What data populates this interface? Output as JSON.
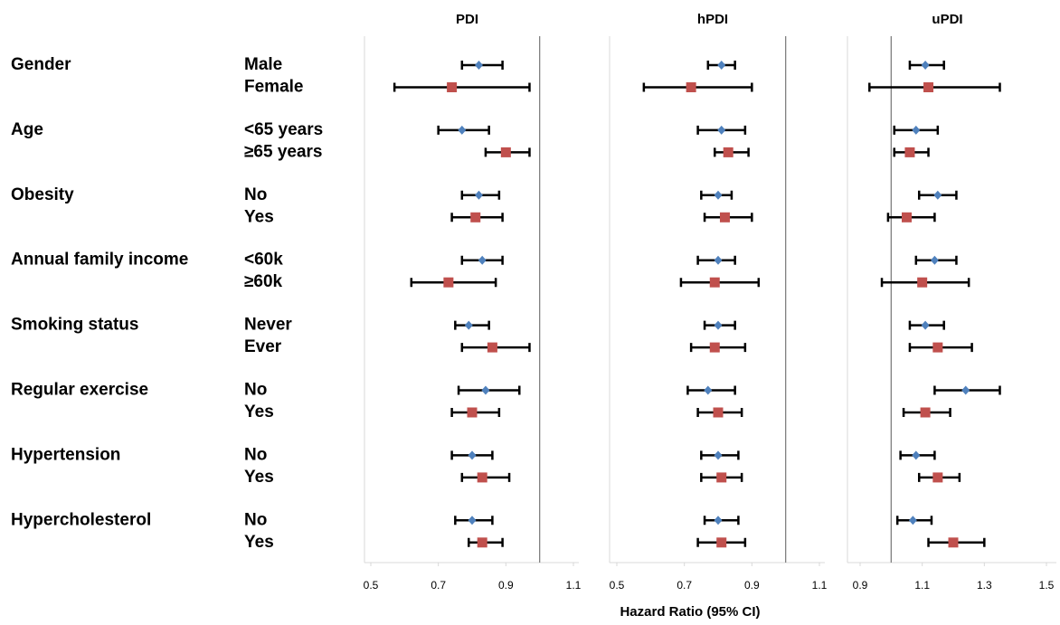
{
  "chart_data": {
    "type": "forest",
    "x_label": "Hazard Ratio (95% CI)",
    "reference": 1,
    "colors": [
      "#4f81bd",
      "#c0504d"
    ],
    "markers": [
      "diamond",
      "square"
    ],
    "groups": [
      {
        "name": "Gender",
        "levels": [
          "Male",
          "Female"
        ]
      },
      {
        "name": "Age",
        "levels": [
          "<65 years",
          "≥65 years"
        ]
      },
      {
        "name": "Obesity",
        "levels": [
          "No",
          "Yes"
        ]
      },
      {
        "name": "Annual family income",
        "levels": [
          "<60k",
          "≥60k"
        ]
      },
      {
        "name": "Smoking status",
        "levels": [
          "Never",
          "Ever"
        ]
      },
      {
        "name": "Regular exercise",
        "levels": [
          "No",
          "Yes"
        ]
      },
      {
        "name": "Hypertension",
        "levels": [
          "No",
          "Yes"
        ]
      },
      {
        "name": "Hypercholesterol",
        "levels": [
          "No",
          "Yes"
        ]
      }
    ],
    "panels": [
      {
        "title": "PDI",
        "xlim": [
          0.5,
          1.1
        ],
        "xticks": [
          0.5,
          0.7,
          0.9,
          1.1
        ],
        "values": [
          0.82,
          0.74,
          0.77,
          0.9,
          0.82,
          0.81,
          0.83,
          0.73,
          0.79,
          0.86,
          0.84,
          0.8,
          0.8,
          0.83,
          0.8,
          0.83
        ],
        "lower": [
          0.77,
          0.57,
          0.7,
          0.84,
          0.77,
          0.74,
          0.77,
          0.62,
          0.75,
          0.77,
          0.76,
          0.74,
          0.74,
          0.77,
          0.75,
          0.79
        ],
        "upper": [
          0.89,
          0.97,
          0.85,
          0.97,
          0.88,
          0.89,
          0.89,
          0.87,
          0.85,
          0.97,
          0.94,
          0.88,
          0.86,
          0.91,
          0.86,
          0.89
        ]
      },
      {
        "title": "hPDI",
        "xlim": [
          0.5,
          1.1
        ],
        "xticks": [
          0.5,
          0.7,
          0.9,
          1.1
        ],
        "values": [
          0.81,
          0.72,
          0.81,
          0.83,
          0.8,
          0.82,
          0.8,
          0.79,
          0.8,
          0.79,
          0.77,
          0.8,
          0.8,
          0.81,
          0.8,
          0.81
        ],
        "lower": [
          0.77,
          0.58,
          0.74,
          0.79,
          0.75,
          0.76,
          0.74,
          0.69,
          0.76,
          0.72,
          0.71,
          0.74,
          0.75,
          0.75,
          0.76,
          0.74
        ],
        "upper": [
          0.85,
          0.9,
          0.88,
          0.89,
          0.84,
          0.9,
          0.85,
          0.92,
          0.85,
          0.88,
          0.85,
          0.87,
          0.86,
          0.87,
          0.86,
          0.88
        ]
      },
      {
        "title": "uPDI",
        "xlim": [
          0.9,
          1.5
        ],
        "xticks": [
          0.9,
          1.1,
          1.3,
          1.5
        ],
        "values": [
          1.11,
          1.12,
          1.08,
          1.06,
          1.15,
          1.05,
          1.14,
          1.1,
          1.11,
          1.15,
          1.24,
          1.11,
          1.08,
          1.15,
          1.07,
          1.2
        ],
        "lower": [
          1.06,
          0.93,
          1.01,
          1.01,
          1.09,
          0.99,
          1.08,
          0.97,
          1.06,
          1.06,
          1.14,
          1.04,
          1.03,
          1.09,
          1.02,
          1.12
        ],
        "upper": [
          1.17,
          1.35,
          1.15,
          1.12,
          1.21,
          1.14,
          1.21,
          1.25,
          1.17,
          1.26,
          1.35,
          1.19,
          1.14,
          1.22,
          1.13,
          1.3
        ]
      }
    ]
  }
}
